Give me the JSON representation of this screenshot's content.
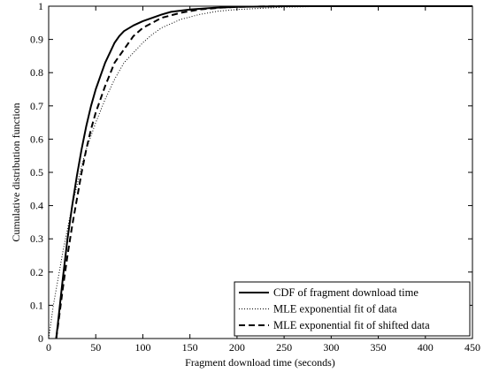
{
  "chart_data": {
    "type": "line",
    "xlabel": "Fragment download time (seconds)",
    "ylabel": "Cumulative distribution function",
    "xlim": [
      0,
      450
    ],
    "ylim": [
      0,
      1
    ],
    "x_ticks": [
      "0",
      "50",
      "100",
      "150",
      "200",
      "250",
      "300",
      "350",
      "400",
      "450"
    ],
    "y_ticks": [
      "0",
      "0.1",
      "0.2",
      "0.3",
      "0.4",
      "0.5",
      "0.6",
      "0.7",
      "0.8",
      "0.9",
      "1"
    ],
    "grid": false,
    "legend_position": "bottom-right",
    "series": [
      {
        "name": "CDF of fragment download time",
        "style": "solid",
        "color": "#000000",
        "points": [
          [
            8,
            0
          ],
          [
            10,
            0.05
          ],
          [
            15,
            0.18
          ],
          [
            20,
            0.3
          ],
          [
            25,
            0.4
          ],
          [
            30,
            0.49
          ],
          [
            35,
            0.57
          ],
          [
            40,
            0.64
          ],
          [
            45,
            0.7
          ],
          [
            50,
            0.75
          ],
          [
            55,
            0.79
          ],
          [
            60,
            0.83
          ],
          [
            65,
            0.86
          ],
          [
            70,
            0.89
          ],
          [
            75,
            0.91
          ],
          [
            80,
            0.925
          ],
          [
            90,
            0.942
          ],
          [
            100,
            0.955
          ],
          [
            110,
            0.965
          ],
          [
            120,
            0.975
          ],
          [
            130,
            0.983
          ],
          [
            150,
            0.99
          ],
          [
            175,
            0.995
          ],
          [
            200,
            0.998
          ],
          [
            250,
            1
          ],
          [
            450,
            1
          ]
        ]
      },
      {
        "name": "MLE exponential fit of data",
        "style": "dotted",
        "color": "#000000",
        "points": [
          [
            0,
            0
          ],
          [
            5,
            0.1
          ],
          [
            10,
            0.18
          ],
          [
            15,
            0.26
          ],
          [
            20,
            0.33
          ],
          [
            25,
            0.4
          ],
          [
            30,
            0.46
          ],
          [
            35,
            0.52
          ],
          [
            40,
            0.57
          ],
          [
            45,
            0.61
          ],
          [
            50,
            0.65
          ],
          [
            60,
            0.72
          ],
          [
            70,
            0.78
          ],
          [
            80,
            0.83
          ],
          [
            90,
            0.86
          ],
          [
            100,
            0.89
          ],
          [
            110,
            0.915
          ],
          [
            120,
            0.935
          ],
          [
            140,
            0.96
          ],
          [
            160,
            0.975
          ],
          [
            180,
            0.985
          ],
          [
            200,
            0.99
          ],
          [
            250,
            0.997
          ],
          [
            300,
            1
          ],
          [
            450,
            1
          ]
        ]
      },
      {
        "name": "MLE exponential fit of shifted data",
        "style": "dashed",
        "color": "#000000",
        "points": [
          [
            8,
            0
          ],
          [
            10,
            0.04
          ],
          [
            15,
            0.15
          ],
          [
            20,
            0.25
          ],
          [
            25,
            0.34
          ],
          [
            30,
            0.42
          ],
          [
            35,
            0.5
          ],
          [
            40,
            0.57
          ],
          [
            45,
            0.63
          ],
          [
            50,
            0.68
          ],
          [
            55,
            0.72
          ],
          [
            60,
            0.76
          ],
          [
            70,
            0.83
          ],
          [
            80,
            0.87
          ],
          [
            90,
            0.91
          ],
          [
            100,
            0.935
          ],
          [
            110,
            0.95
          ],
          [
            120,
            0.965
          ],
          [
            140,
            0.98
          ],
          [
            160,
            0.99
          ],
          [
            180,
            0.995
          ],
          [
            200,
            0.998
          ],
          [
            250,
            1
          ],
          [
            450,
            1
          ]
        ]
      }
    ]
  }
}
